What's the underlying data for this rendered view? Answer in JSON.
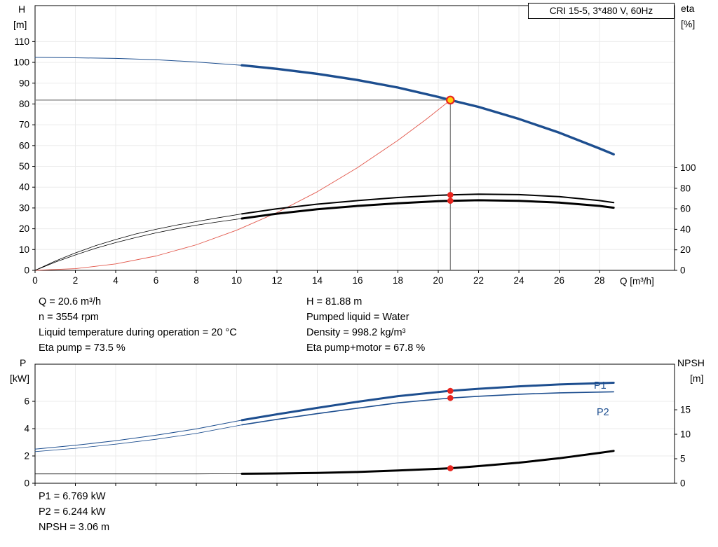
{
  "title_box": {
    "text": "CRI 15-5, 3*480 V, 60Hz"
  },
  "colors": {
    "blue": "#1d4e8f",
    "red": "#e8251f",
    "duty_curve_red": "#e2574b",
    "black": "#000000",
    "marker_yellow": "#ffd20a",
    "guide_gray": "#7a7a7a",
    "grid": "#ebebeb",
    "frame": "#000000"
  },
  "axis_labels": {
    "top_left_1": "H",
    "top_left_2": "[m]",
    "top_right_1": "eta",
    "top_right_2": "[%]",
    "x": "Q [m³/h]",
    "bottom_left_1": "P",
    "bottom_left_2": "[kW]",
    "bottom_right_1": "NPSH",
    "bottom_right_2": "[m]",
    "p1": "P1",
    "p2": "P2"
  },
  "mid_annotations": {
    "left": [
      "Q = 20.6 m³/h",
      "n = 3554 rpm",
      "Liquid temperature during operation = 20 °C",
      "Eta pump = 73.5 %"
    ],
    "right": [
      "H = 81.88 m",
      "Pumped liquid = Water",
      "Density = 998.2 kg/m³",
      "Eta pump+motor = 67.8 %"
    ]
  },
  "bottom_annotations": [
    "P1 = 6.769 kW",
    "P2 = 6.244 kW",
    "NPSH = 3.06 m"
  ],
  "chart_data": [
    {
      "id": "hq-eta-chart",
      "type": "line",
      "title": "CRI 15-5, 3*480 V, 60Hz",
      "x_axis": {
        "label": "Q [m³/h]",
        "min": 0,
        "max": 31.72,
        "ticks": [
          0,
          2,
          4,
          6,
          8,
          10,
          12,
          14,
          16,
          18,
          20,
          22,
          24,
          26,
          28
        ]
      },
      "y_left": {
        "label": "H [m]",
        "min": 0,
        "max": 127.3,
        "ticks": [
          0,
          10,
          20,
          30,
          40,
          50,
          60,
          70,
          80,
          90,
          100,
          110
        ]
      },
      "y_right": {
        "label": "eta [%]",
        "min": 0,
        "max": 258,
        "ticks": [
          0,
          20,
          40,
          60,
          80,
          100
        ]
      },
      "grid": true,
      "legend": "none",
      "series": [
        {
          "name": "head-curve",
          "axis": "left",
          "color": "blue",
          "thin": 1,
          "thick": 3.4,
          "thick_from": 10.26,
          "points": [
            [
              0,
              102.4
            ],
            [
              2,
              102.2
            ],
            [
              4,
              101.9
            ],
            [
              6,
              101.3
            ],
            [
              8,
              100.2
            ],
            [
              10.26,
              98.6
            ],
            [
              12,
              96.9
            ],
            [
              14,
              94.5
            ],
            [
              16,
              91.5
            ],
            [
              18,
              87.9
            ],
            [
              20,
              83.4
            ],
            [
              20.6,
              81.88
            ],
            [
              22,
              78.6
            ],
            [
              24,
              72.8
            ],
            [
              26,
              66.2
            ],
            [
              28,
              58.6
            ],
            [
              28.7,
              55.8
            ]
          ]
        },
        {
          "name": "duty-parabola",
          "axis": "left",
          "color": "duty_curve_red",
          "thin": 0.9,
          "points": [
            [
              0,
              0
            ],
            [
              2,
              0.8
            ],
            [
              4,
              3.1
            ],
            [
              6,
              6.9
            ],
            [
              8,
              12.3
            ],
            [
              10,
              19.3
            ],
            [
              12,
              27.8
            ],
            [
              14,
              37.8
            ],
            [
              16,
              49.4
            ],
            [
              18,
              62.5
            ],
            [
              19.4,
              72.6
            ],
            [
              20.6,
              81.88
            ]
          ]
        },
        {
          "name": "eta-pump-curve",
          "axis": "right",
          "color": "black",
          "thin": 0.8,
          "thick": 2,
          "thick_from": 10.26,
          "points": [
            [
              0,
              0
            ],
            [
              1,
              9
            ],
            [
              2,
              17
            ],
            [
              3,
              24
            ],
            [
              4,
              30
            ],
            [
              5,
              35.5
            ],
            [
              6,
              40
            ],
            [
              7,
              44
            ],
            [
              8,
              47.5
            ],
            [
              9,
              51
            ],
            [
              10.26,
              55
            ],
            [
              12,
              60
            ],
            [
              14,
              64.5
            ],
            [
              16,
              68
            ],
            [
              18,
              71
            ],
            [
              20,
              73.1
            ],
            [
              20.6,
              73.5
            ],
            [
              22,
              74.2
            ],
            [
              24,
              73.8
            ],
            [
              26,
              71.8
            ],
            [
              28,
              68
            ],
            [
              28.7,
              66
            ]
          ]
        },
        {
          "name": "eta-pump-motor-curve",
          "axis": "right",
          "color": "black",
          "thin": 0.8,
          "thick": 3,
          "thick_from": 10.26,
          "points": [
            [
              0,
              0
            ],
            [
              1,
              8
            ],
            [
              2,
              15
            ],
            [
              3,
              21.5
            ],
            [
              4,
              27
            ],
            [
              5,
              32
            ],
            [
              6,
              36.5
            ],
            [
              7,
              40.5
            ],
            [
              8,
              44
            ],
            [
              9,
              47
            ],
            [
              10.26,
              50.5
            ],
            [
              12,
              55.2
            ],
            [
              14,
              59.5
            ],
            [
              16,
              62.8
            ],
            [
              18,
              65.4
            ],
            [
              20,
              67.4
            ],
            [
              20.6,
              67.8
            ],
            [
              22,
              68.3
            ],
            [
              24,
              67.8
            ],
            [
              26,
              66
            ],
            [
              28,
              62.8
            ],
            [
              28.7,
              61
            ]
          ]
        }
      ],
      "duty_point": {
        "Q": 20.6,
        "H": 81.88
      },
      "guide_lines": true,
      "markers": [
        {
          "Q": 20.6,
          "v": 81.88,
          "axis": "left",
          "style": "duty"
        },
        {
          "Q": 20.6,
          "v": 73.5,
          "axis": "right",
          "style": "dot"
        },
        {
          "Q": 20.6,
          "v": 67.8,
          "axis": "right",
          "style": "dot"
        }
      ]
    },
    {
      "id": "power-npsh-chart",
      "type": "line",
      "x_axis": {
        "label": "",
        "min": 0,
        "max": 31.72,
        "ticks": [
          0,
          2,
          4,
          6,
          8,
          10,
          12,
          14,
          16,
          18,
          20,
          22,
          24,
          26,
          28
        ]
      },
      "y_left": {
        "label": "P [kW]",
        "min": 0,
        "max": 8.72,
        "ticks": [
          0,
          2,
          4,
          6
        ]
      },
      "y_right": {
        "label": "NPSH [m]",
        "min": 0,
        "max": 24.3,
        "ticks": [
          0,
          5,
          10,
          15
        ]
      },
      "grid": true,
      "legend": "P1 / P2 inline labels",
      "series": [
        {
          "name": "p1-curve",
          "axis": "left",
          "color": "blue",
          "thin": 1,
          "thick": 3,
          "thick_from": 10.26,
          "points": [
            [
              0,
              2.5
            ],
            [
              2,
              2.78
            ],
            [
              4,
              3.12
            ],
            [
              6,
              3.52
            ],
            [
              8,
              3.98
            ],
            [
              10.26,
              4.62
            ],
            [
              12,
              5.05
            ],
            [
              14,
              5.52
            ],
            [
              16,
              5.97
            ],
            [
              18,
              6.38
            ],
            [
              20.6,
              6.769
            ],
            [
              22,
              6.92
            ],
            [
              24,
              7.1
            ],
            [
              26,
              7.24
            ],
            [
              28,
              7.33
            ],
            [
              28.7,
              7.36
            ]
          ]
        },
        {
          "name": "p2-curve",
          "axis": "left",
          "color": "blue",
          "thin": 0.8,
          "thick": 1.6,
          "thick_from": 10.26,
          "points": [
            [
              0,
              2.32
            ],
            [
              2,
              2.56
            ],
            [
              4,
              2.86
            ],
            [
              6,
              3.22
            ],
            [
              8,
              3.65
            ],
            [
              10.26,
              4.28
            ],
            [
              12,
              4.68
            ],
            [
              14,
              5.1
            ],
            [
              16,
              5.5
            ],
            [
              18,
              5.89
            ],
            [
              20.6,
              6.244
            ],
            [
              22,
              6.37
            ],
            [
              24,
              6.52
            ],
            [
              26,
              6.62
            ],
            [
              28,
              6.68
            ],
            [
              28.7,
              6.7
            ]
          ]
        },
        {
          "name": "npsh-curve",
          "axis": "right",
          "color": "black",
          "thin": 0.8,
          "thick": 3,
          "thick_from": 10.26,
          "points": [
            [
              0,
              1.9
            ],
            [
              4,
              1.9
            ],
            [
              8,
              1.9
            ],
            [
              10.26,
              1.95
            ],
            [
              12,
              2.0
            ],
            [
              14,
              2.1
            ],
            [
              16,
              2.3
            ],
            [
              18,
              2.6
            ],
            [
              20.6,
              3.06
            ],
            [
              22,
              3.5
            ],
            [
              24,
              4.2
            ],
            [
              26,
              5.1
            ],
            [
              28,
              6.2
            ],
            [
              28.7,
              6.6
            ]
          ]
        }
      ],
      "markers": [
        {
          "Q": 20.6,
          "v": 6.769,
          "axis": "left",
          "style": "dot"
        },
        {
          "Q": 20.6,
          "v": 6.244,
          "axis": "left",
          "style": "dot"
        },
        {
          "Q": 20.6,
          "v": 3.06,
          "axis": "right",
          "style": "dot"
        }
      ]
    }
  ]
}
